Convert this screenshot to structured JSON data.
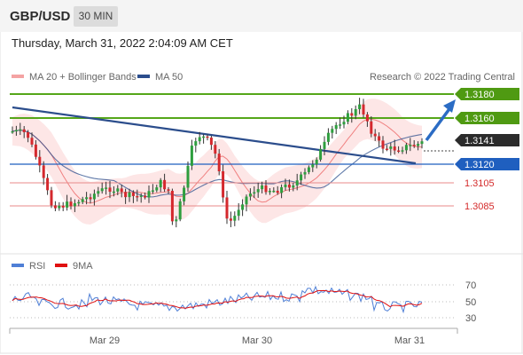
{
  "header": {
    "pair": "GBP/USD",
    "timeframe": "30 MIN",
    "timestamp": "Thursday, March 31, 2022 2:04:09 AM CET"
  },
  "legend": {
    "bollinger": "MA 20 + Bollinger Bands",
    "ma50": "MA 50",
    "credit": "Research © 2022 Trading Central",
    "rsi": "RSI",
    "rsi_ma": "9MA"
  },
  "colors": {
    "bull": "#2e9e3e",
    "bear": "#d4282d",
    "bollinger_fill": "#fde0e0",
    "bollinger_line": "#f08080",
    "ma50": "#2b4d8c",
    "resistance": "#55a61a",
    "support": "#1f5fbf",
    "target_down": "#e06060",
    "rsi": "#4f7fd6",
    "rsi_ma": "#e01010"
  },
  "levels": [
    {
      "price": "1.3180",
      "kind": "resistance"
    },
    {
      "price": "1.3160",
      "kind": "resistance"
    },
    {
      "price": "1.3141",
      "kind": "current"
    },
    {
      "price": "1.3120",
      "kind": "support"
    },
    {
      "price": "1.3105",
      "kind": "target"
    },
    {
      "price": "1.3085",
      "kind": "target"
    }
  ],
  "rsi_axis": [
    "70",
    "50",
    "30"
  ],
  "x_axis": [
    "Mar 29",
    "Mar 30",
    "Mar 31"
  ]
}
